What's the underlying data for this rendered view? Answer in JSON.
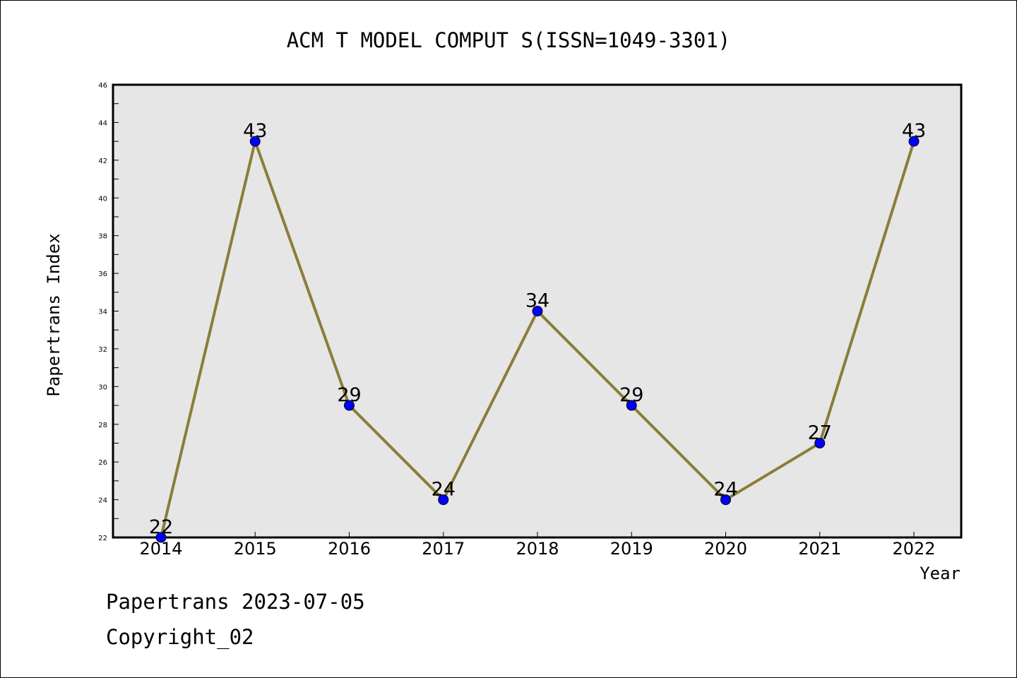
{
  "chart_data": {
    "type": "line",
    "title": "ACM T MODEL COMPUT S(ISSN=1049-3301)",
    "xlabel": "Year",
    "ylabel": "Papertrans Index",
    "categories": [
      "2014",
      "2015",
      "2016",
      "2017",
      "2018",
      "2019",
      "2020",
      "2021",
      "2022"
    ],
    "values": [
      22,
      43,
      29,
      24,
      34,
      29,
      24,
      27,
      43
    ],
    "ylim": [
      22,
      46
    ],
    "yticks": [
      "22",
      "24",
      "26",
      "28",
      "30",
      "32",
      "34",
      "36",
      "38",
      "40",
      "42",
      "44",
      "46"
    ],
    "grid": false,
    "colors": {
      "line": "#8B7D3A",
      "marker": "#0000FF",
      "plot_background": "#E6E6E6"
    }
  },
  "footer": {
    "date_text": "Papertrans 2023-07-05",
    "copyright_text": "Copyright_02"
  }
}
